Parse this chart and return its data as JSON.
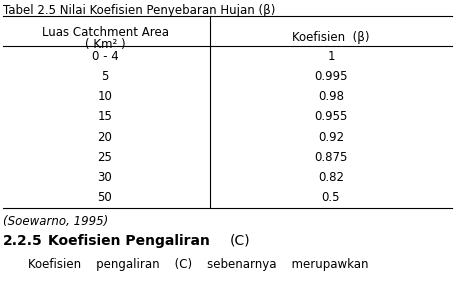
{
  "title": "Tabel 2.5 Nilai Koefisien Penyebaran Hujan (β)",
  "col1_header_line1": "Luas Catchment Area",
  "col1_header_line2": "( Km² )",
  "col2_header": "Koefisien  (β)",
  "rows": [
    [
      "0 - 4",
      "1"
    ],
    [
      "5",
      "0.995"
    ],
    [
      "10",
      "0.98"
    ],
    [
      "15",
      "0.955"
    ],
    [
      "20",
      "0.92"
    ],
    [
      "25",
      "0.875"
    ],
    [
      "30",
      "0.82"
    ],
    [
      "50",
      "0.5"
    ]
  ],
  "source": "(Soewarno, 1995)",
  "bg_color": "#ffffff",
  "text_color": "#000000",
  "font_size": 8.5,
  "col_split": 0.46
}
